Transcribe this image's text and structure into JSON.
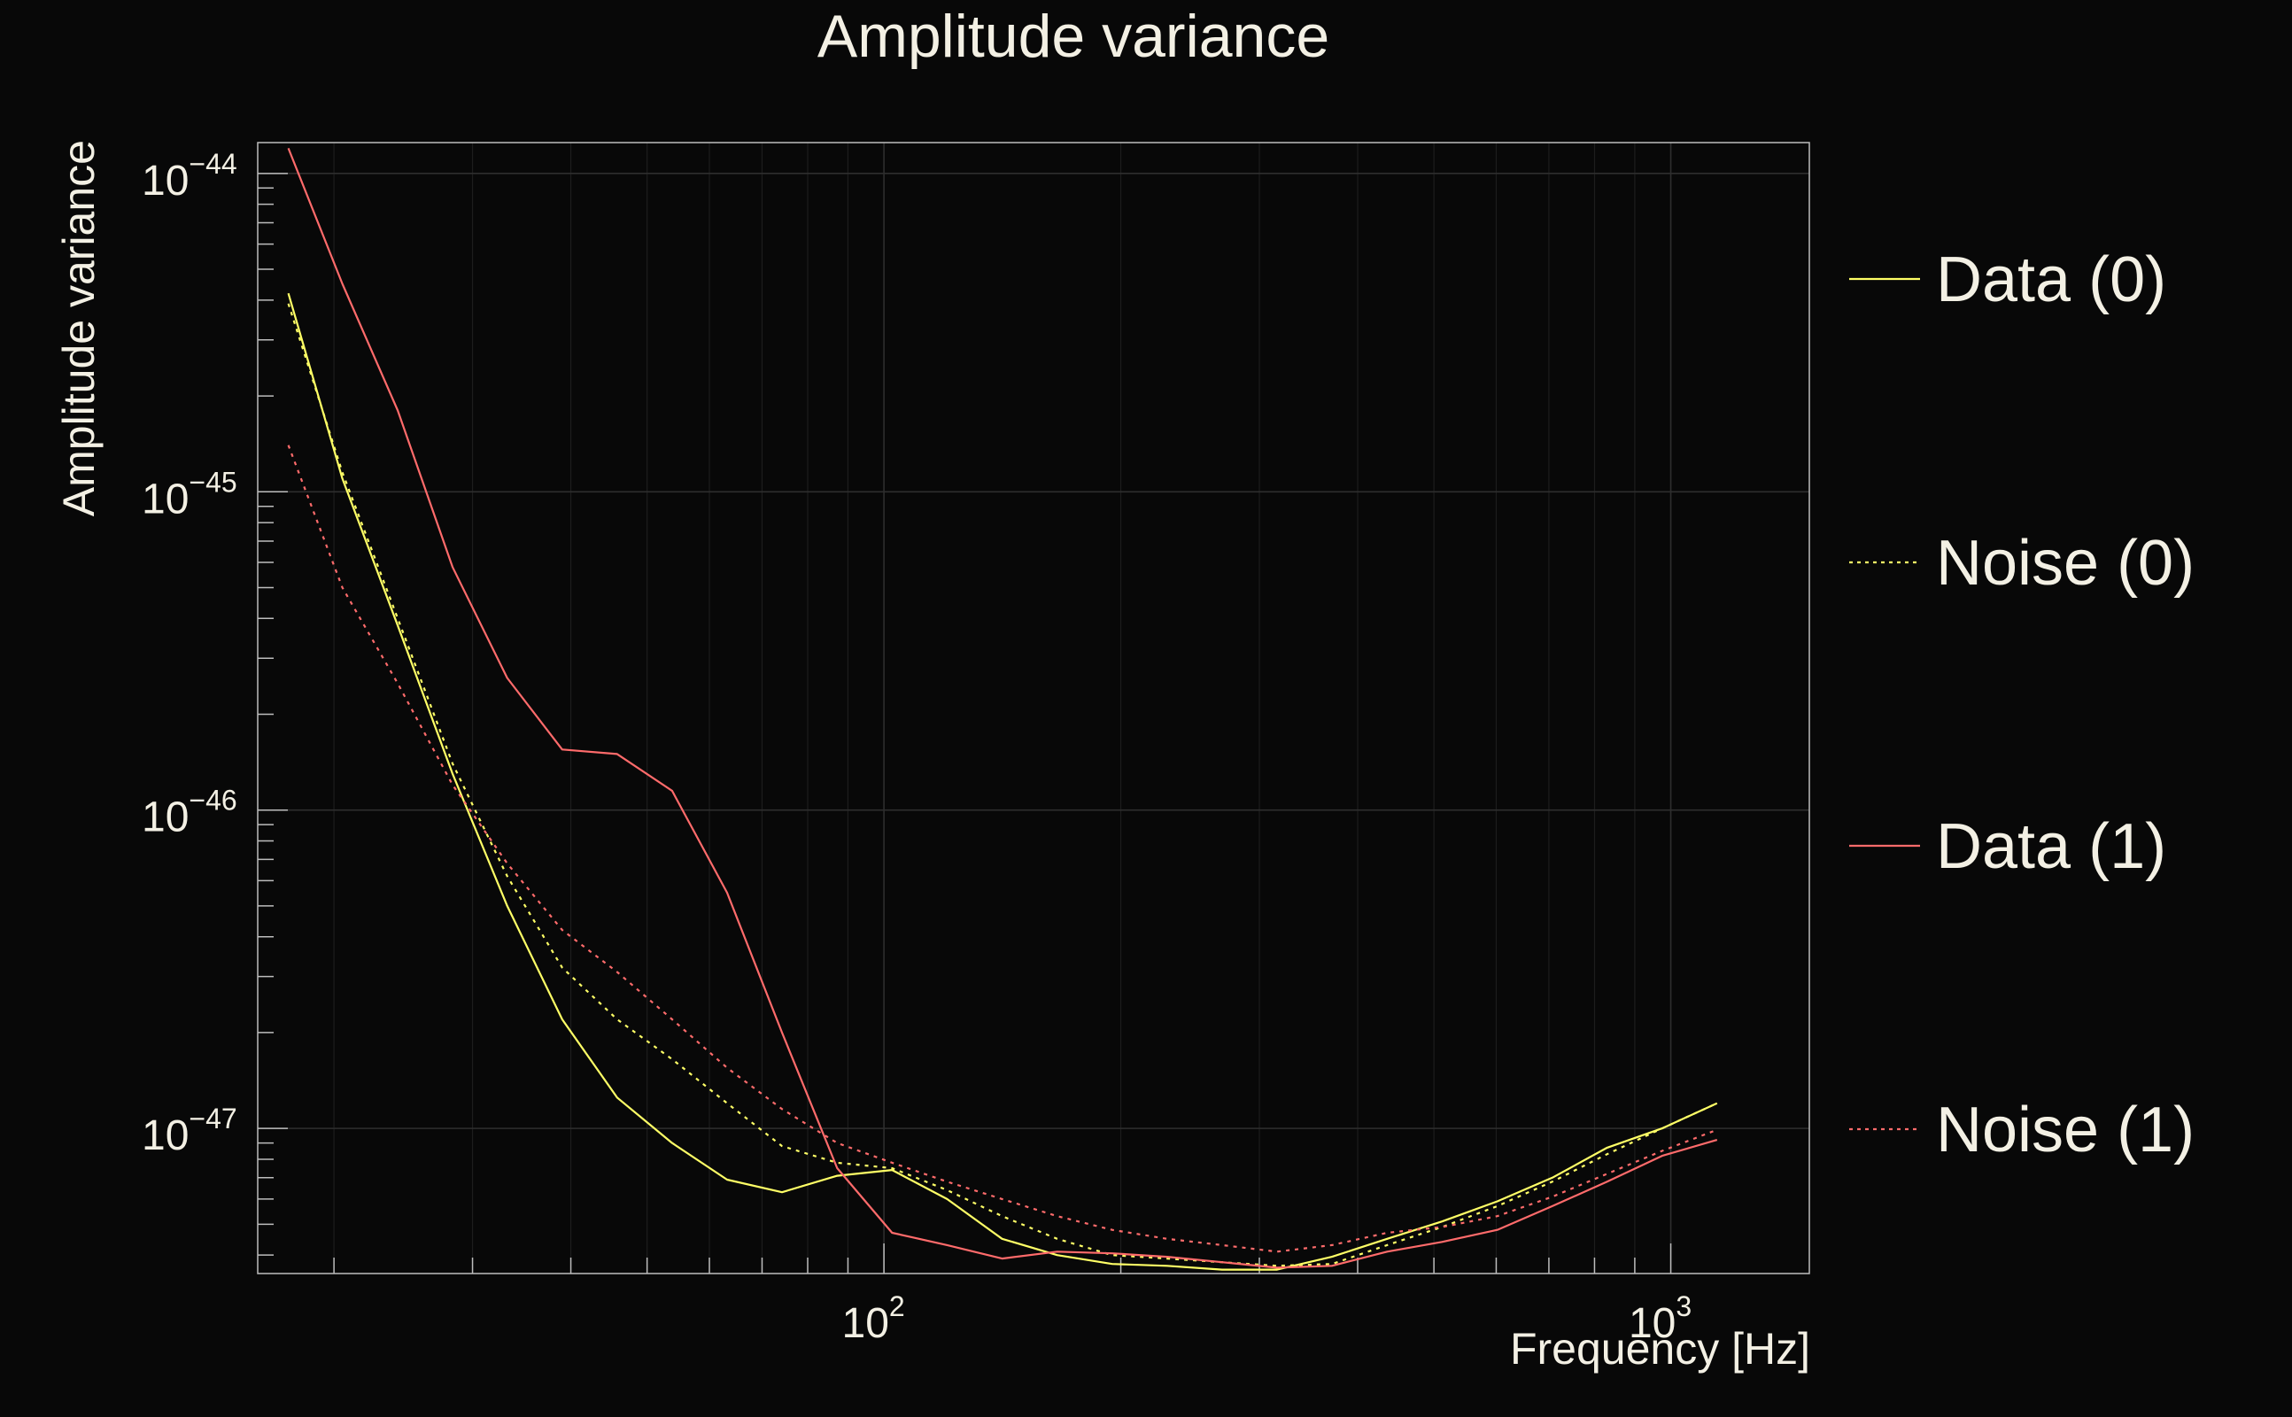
{
  "chart_data": {
    "type": "line",
    "title": "Amplitude variance",
    "xlabel": "Frequency [Hz]",
    "ylabel": "Amplitude variance",
    "xscale": "log",
    "yscale": "log",
    "xlim": [
      16,
      1500
    ],
    "ylim": [
      3.5e-48,
      1.25e-44
    ],
    "grid": true,
    "legend_position": "right",
    "x_ticks": [
      {
        "value": 100,
        "base": "10",
        "exp": "2"
      },
      {
        "value": 1000,
        "base": "10",
        "exp": "3"
      }
    ],
    "y_ticks": [
      {
        "value": 1e-44,
        "base": "10",
        "exp": "−44"
      },
      {
        "value": 1e-45,
        "base": "10",
        "exp": "−45"
      },
      {
        "value": 1e-46,
        "base": "10",
        "exp": "−46"
      },
      {
        "value": 1e-47,
        "base": "10",
        "exp": "−47"
      }
    ],
    "series": [
      {
        "name": "Data (0)",
        "color": "#ffff66",
        "dash": "solid",
        "x": [
          17.5,
          20.5,
          24.1,
          28.3,
          33.2,
          39,
          45.8,
          53.8,
          63.2,
          74.2,
          87.2,
          102.4,
          120.3,
          141.3,
          166,
          195,
          229,
          269,
          316,
          371,
          436,
          512,
          602,
          707,
          830,
          975,
          1145
        ],
        "y": [
          4.2e-45,
          1.1e-45,
          3.8e-46,
          1.3e-46,
          5e-47,
          2.2e-47,
          1.25e-47,
          9e-48,
          6.9e-48,
          6.3e-48,
          7.1e-48,
          7.4e-48,
          6e-48,
          4.5e-48,
          4e-48,
          3.75e-48,
          3.7e-48,
          3.6e-48,
          3.6e-48,
          3.95e-48,
          4.5e-48,
          5.1e-48,
          5.9e-48,
          7e-48,
          8.7e-48,
          1e-47,
          1.2e-47
        ]
      },
      {
        "name": "Noise (0)",
        "color": "#ffff66",
        "dash": "dotted",
        "x": [
          17.5,
          20.5,
          24.1,
          28.3,
          33.2,
          39,
          45.8,
          53.8,
          63.2,
          74.2,
          87.2,
          102.4,
          120.3,
          141.3,
          166,
          195,
          229,
          269,
          316,
          371,
          436,
          512,
          602,
          707,
          830,
          975,
          1145
        ],
        "y": [
          3.9e-45,
          1.15e-45,
          4e-46,
          1.4e-46,
          6.2e-47,
          3.2e-47,
          2.2e-47,
          1.65e-47,
          1.2e-47,
          8.8e-48,
          7.8e-48,
          7.5e-48,
          6.4e-48,
          5.3e-48,
          4.5e-48,
          4e-48,
          3.9e-48,
          3.8e-48,
          3.7e-48,
          3.75e-48,
          4.3e-48,
          4.9e-48,
          5.7e-48,
          6.8e-48,
          8.3e-48,
          1e-47,
          1.2e-47
        ]
      },
      {
        "name": "Data (1)",
        "color": "#ff6b6b",
        "dash": "solid",
        "x": [
          17.5,
          20.5,
          24.1,
          28.3,
          33.2,
          39,
          45.8,
          53.8,
          63.2,
          74.2,
          87.2,
          102.4,
          120.3,
          141.3,
          166,
          195,
          229,
          269,
          316,
          371,
          436,
          512,
          602,
          707,
          830,
          975,
          1145
        ],
        "y": [
          1.2e-44,
          4.5e-45,
          1.8e-45,
          5.8e-46,
          2.6e-46,
          1.55e-46,
          1.5e-46,
          1.15e-46,
          5.5e-47,
          2e-47,
          7.5e-48,
          4.7e-48,
          4.3e-48,
          3.9e-48,
          4.1e-48,
          4.05e-48,
          3.95e-48,
          3.8e-48,
          3.65e-48,
          3.7e-48,
          4.1e-48,
          4.4e-48,
          4.8e-48,
          5.7e-48,
          6.8e-48,
          8.2e-48,
          9.2e-48
        ]
      },
      {
        "name": "Noise (1)",
        "color": "#ff6b6b",
        "dash": "dotted",
        "x": [
          17.5,
          20.5,
          24.1,
          28.3,
          33.2,
          39,
          45.8,
          53.8,
          63.2,
          74.2,
          87.2,
          102.4,
          120.3,
          141.3,
          166,
          195,
          229,
          269,
          316,
          371,
          436,
          512,
          602,
          707,
          830,
          975,
          1145
        ],
        "y": [
          1.4e-45,
          5e-46,
          2.5e-46,
          1.2e-46,
          6.8e-47,
          4.2e-47,
          3.1e-47,
          2.2e-47,
          1.55e-47,
          1.15e-47,
          9e-48,
          7.8e-48,
          6.8e-48,
          6e-48,
          5.3e-48,
          4.8e-48,
          4.5e-48,
          4.3e-48,
          4.1e-48,
          4.3e-48,
          4.7e-48,
          4.9e-48,
          5.3e-48,
          6.1e-48,
          7.2e-48,
          8.5e-48,
          9.9e-48
        ]
      }
    ]
  }
}
